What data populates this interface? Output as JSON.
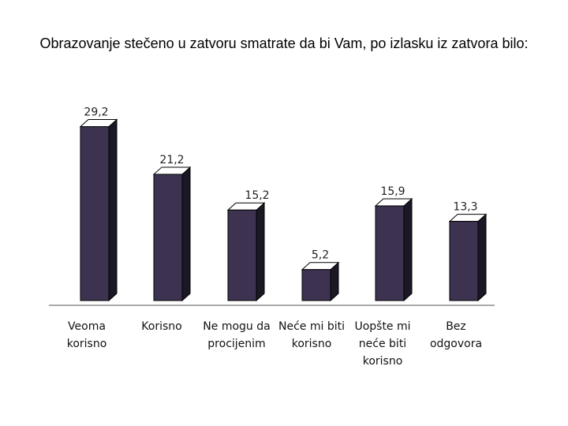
{
  "title": "Obrazovanje stečeno u zatvoru smatrate da bi Vam, po izlasku iz zatvora bilo:",
  "chart_data": {
    "type": "bar",
    "categories": [
      [
        "Veoma",
        "korisno"
      ],
      [
        "Korisno"
      ],
      [
        "Ne mogu da",
        "procijenim"
      ],
      [
        "Neće mi biti",
        "korisno"
      ],
      [
        "Uopšte mi",
        "neće biti",
        "korisno"
      ],
      [
        "Bez",
        "odgovora"
      ]
    ],
    "values": [
      29.2,
      21.2,
      15.2,
      5.2,
      15.9,
      13.3
    ],
    "value_labels": [
      "29,2",
      "21,2",
      "15,2",
      "5,2",
      "15,9",
      "13,3"
    ],
    "ylim": [
      0,
      30
    ],
    "grid": false,
    "legend": "none",
    "style": "3d-column",
    "colors": {
      "front": "#3d3350",
      "side": "#1b1725",
      "top": "#ffffff",
      "edge": "#000000",
      "floor": "#aaaaaa"
    }
  }
}
